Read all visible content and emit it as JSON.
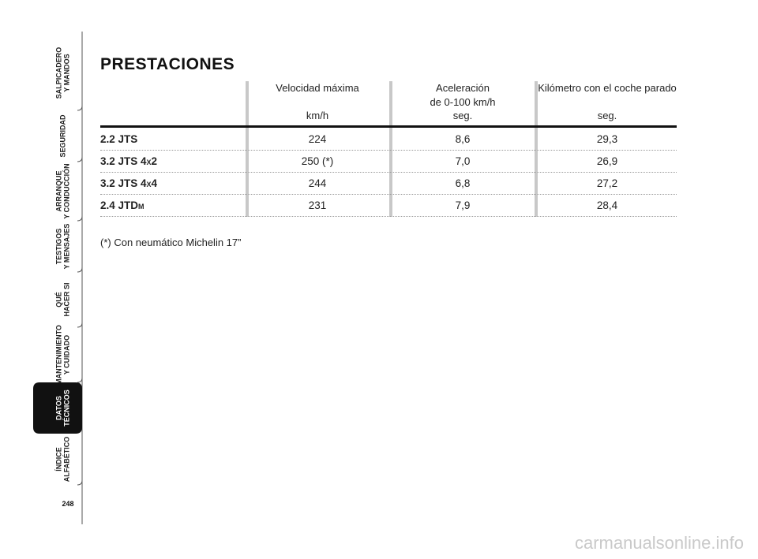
{
  "sidebar": {
    "tabs": [
      {
        "lines": [
          "SALPICADERO",
          "Y MANDOS"
        ]
      },
      {
        "lines": [
          "SEGURIDAD"
        ]
      },
      {
        "lines": [
          "ARRANQUE",
          "Y CONDUCCIÓN"
        ]
      },
      {
        "lines": [
          "TESTIGOS",
          "Y MENSAJES"
        ]
      },
      {
        "lines": [
          "QUÉ",
          "HACER SI"
        ]
      },
      {
        "lines": [
          "MANTENIMIENTO",
          "Y CUIDADO"
        ]
      },
      {
        "lines": [
          "DATOS",
          "TÉCNICOS"
        ],
        "active": true
      },
      {
        "lines": [
          "ÍNDICE",
          "ALFABÉTICO"
        ]
      }
    ],
    "page_number": "248"
  },
  "title": "PRESTACIONES",
  "table": {
    "headers": [
      {
        "lines": [
          "Velocidad máxima",
          "",
          "km/h"
        ]
      },
      {
        "lines": [
          "Aceleración",
          "de 0-100 km/h",
          "seg."
        ]
      },
      {
        "lines": [
          "Kilómetro con el coche parado",
          "",
          "seg."
        ]
      }
    ],
    "rows": [
      [
        "2.2 JTS",
        "224",
        "8,6",
        "29,3"
      ],
      [
        "3.2 JTS 4x2",
        "250 (*)",
        "7,0",
        "26,9"
      ],
      [
        "3.2 JTS 4x4",
        "244",
        "6,8",
        "27,2"
      ],
      [
        "2.4 JTDm",
        "231",
        "7,9",
        "28,4"
      ]
    ]
  },
  "footnote": "(*) Con neumático Michelin 17”",
  "watermark": "carmanualsonline.info"
}
